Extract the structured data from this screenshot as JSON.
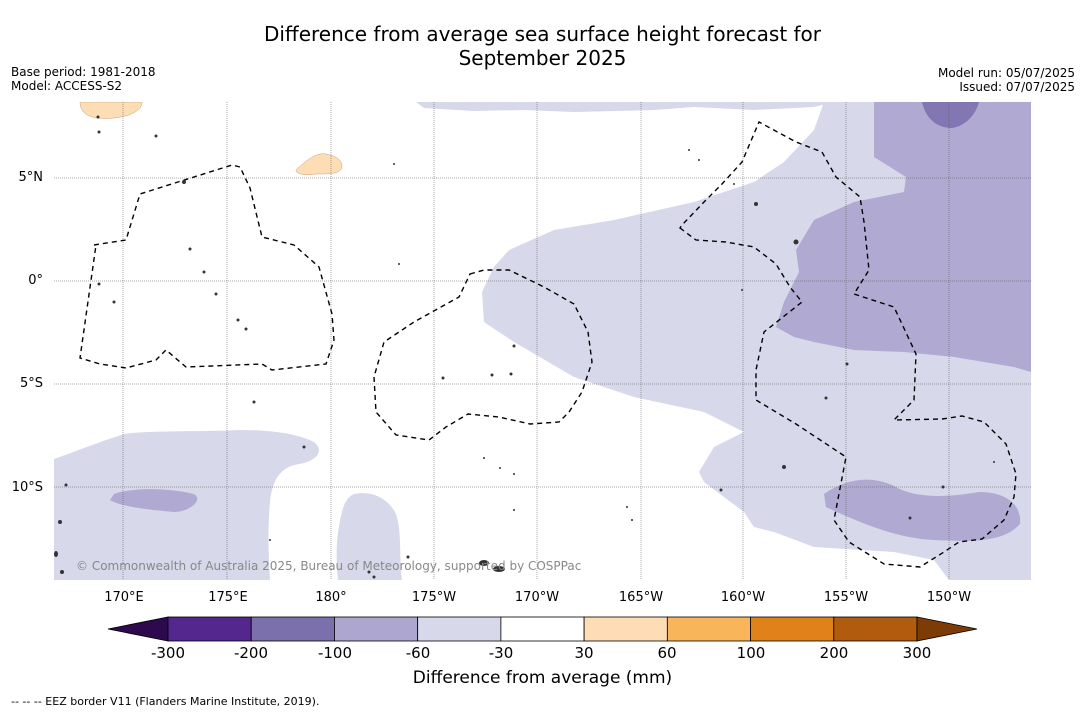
{
  "title_line1": "Difference from average sea surface height forecast for",
  "title_line2": "September 2025",
  "meta_left": {
    "base_period": "Base period: 1981-2018",
    "model": "Model: ACCESS-S2"
  },
  "meta_right": {
    "model_run": "Model run: 05/07/2025",
    "issued": "Issued: 07/07/2025"
  },
  "lon_labels": [
    "170°E",
    "175°E",
    "180°",
    "175°W",
    "170°W",
    "165°W",
    "160°W",
    "155°W",
    "150°W"
  ],
  "lat_labels": [
    "5°N",
    "0°",
    "5°S",
    "10°S"
  ],
  "copyright": "© Commonwealth of Australia 2025, Bureau of Meteorology, supported by COSPPac",
  "colorbar": {
    "ticks": [
      "-300",
      "-200",
      "-100",
      "-60",
      "-30",
      "30",
      "60",
      "100",
      "200",
      "300"
    ],
    "colors": [
      "#2d0a4e",
      "#54278f",
      "#7b6fac",
      "#ada6cf",
      "#d7d8ea",
      "#ffffff",
      "#fdddb5",
      "#f8b55a",
      "#e0821a",
      "#b05b0e",
      "#7d3b05"
    ],
    "label": "Difference from average (mm)"
  },
  "footer_note": "-- -- -- EEZ border V11 (Flanders Marine Institute, 2019).",
  "map_colors": {
    "light_purple": "#d7d8ea",
    "mid_purple": "#b0aad2",
    "dark_purple": "#8377b3",
    "light_orange": "#fdddb5"
  }
}
